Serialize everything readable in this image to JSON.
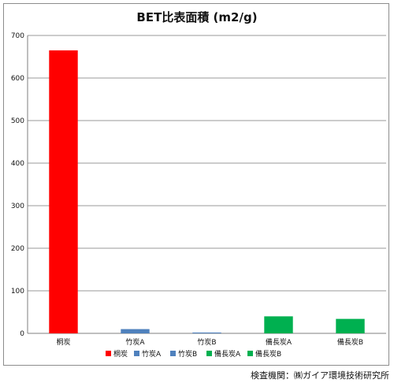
{
  "chart_data": {
    "type": "bar",
    "title": "BET比表面積 (m2/g)",
    "categories": [
      "桐炭",
      "竹炭A",
      "竹炭B",
      "備長炭A",
      "備長炭B"
    ],
    "values": [
      665,
      10,
      2,
      40,
      34
    ],
    "colors": [
      "#ff0000",
      "#4f81bd",
      "#4f81bd",
      "#00b050",
      "#00b050"
    ],
    "ylim": [
      0,
      700
    ],
    "yticks": [
      0,
      100,
      200,
      300,
      400,
      500,
      600,
      700
    ],
    "grid": true,
    "legend": {
      "position": "bottom",
      "entries": [
        {
          "label": "桐炭",
          "color": "#ff0000"
        },
        {
          "label": "竹炭A",
          "color": "#4f81bd"
        },
        {
          "label": "竹炭B",
          "color": "#4f81bd"
        },
        {
          "label": "備長炭A",
          "color": "#00b050"
        },
        {
          "label": "備長炭B",
          "color": "#00b050"
        }
      ]
    }
  },
  "source_note": "検査機関：㈱ガイア環境技術研究所"
}
